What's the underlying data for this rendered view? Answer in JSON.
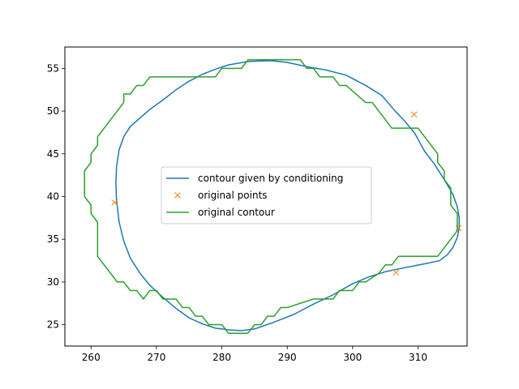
{
  "chart_data": {
    "type": "line",
    "title": "",
    "xlabel": "",
    "ylabel": "",
    "xlim": [
      256,
      317.5
    ],
    "ylim": [
      22.5,
      57.5
    ],
    "xticks": [
      260,
      270,
      280,
      290,
      300,
      310
    ],
    "yticks": [
      25,
      30,
      35,
      40,
      45,
      50,
      55
    ],
    "grid": false,
    "legend_position": "center",
    "series": [
      {
        "name": "contour given by conditioning",
        "kind": "line",
        "color": "#1f77b4",
        "points": [
          [
            284.0,
            55.8
          ],
          [
            287.5,
            55.9
          ],
          [
            290.0,
            55.7
          ],
          [
            293.0,
            55.2
          ],
          [
            296.0,
            54.8
          ],
          [
            299.0,
            54.2
          ],
          [
            302.0,
            53.0
          ],
          [
            304.5,
            51.8
          ],
          [
            306.5,
            50.0
          ],
          [
            308.0,
            48.8
          ],
          [
            309.5,
            47.4
          ],
          [
            311.0,
            45.3
          ],
          [
            312.5,
            43.8
          ],
          [
            314.0,
            42.0
          ],
          [
            315.3,
            40.3
          ],
          [
            316.0,
            38.8
          ],
          [
            316.3,
            37.5
          ],
          [
            316.3,
            36.3
          ],
          [
            316.0,
            35.2
          ],
          [
            315.3,
            34.0
          ],
          [
            314.5,
            33.2
          ],
          [
            313.3,
            32.5
          ],
          [
            311.5,
            32.2
          ],
          [
            309.5,
            31.9
          ],
          [
            307.5,
            31.6
          ],
          [
            305.0,
            31.2
          ],
          [
            302.5,
            30.6
          ],
          [
            300.0,
            29.8
          ],
          [
            297.0,
            28.5
          ],
          [
            294.0,
            27.4
          ],
          [
            291.0,
            26.2
          ],
          [
            288.0,
            25.3
          ],
          [
            285.0,
            24.5
          ],
          [
            283.0,
            24.3
          ],
          [
            281.0,
            24.4
          ],
          [
            279.0,
            24.6
          ],
          [
            277.0,
            25.1
          ],
          [
            275.0,
            25.8
          ],
          [
            273.0,
            26.9
          ],
          [
            271.0,
            28.2
          ],
          [
            269.0,
            29.6
          ],
          [
            267.5,
            31.0
          ],
          [
            266.0,
            32.8
          ],
          [
            265.0,
            34.8
          ],
          [
            264.3,
            37.0
          ],
          [
            263.9,
            39.5
          ],
          [
            263.8,
            41.5
          ],
          [
            263.9,
            43.5
          ],
          [
            264.3,
            45.5
          ],
          [
            265.0,
            47.0
          ],
          [
            266.0,
            48.2
          ],
          [
            267.5,
            49.2
          ],
          [
            269.0,
            50.2
          ],
          [
            271.0,
            51.3
          ],
          [
            273.0,
            52.5
          ],
          [
            275.0,
            53.5
          ],
          [
            277.0,
            54.3
          ],
          [
            279.0,
            54.9
          ],
          [
            281.0,
            55.4
          ],
          [
            284.0,
            55.8
          ]
        ]
      },
      {
        "name": "original points",
        "kind": "scatter",
        "marker": "x",
        "color": "#ff7f0e",
        "points": [
          [
            263.6,
            39.3
          ],
          [
            309.4,
            49.6
          ],
          [
            316.2,
            36.3
          ],
          [
            306.6,
            31.1
          ]
        ]
      },
      {
        "name": "original contour",
        "kind": "line",
        "color": "#2ca02c",
        "points": [
          [
            265,
            51
          ],
          [
            265,
            52
          ],
          [
            266,
            52
          ],
          [
            267,
            53
          ],
          [
            268,
            53
          ],
          [
            269,
            54
          ],
          [
            279,
            54
          ],
          [
            280,
            55
          ],
          [
            283,
            55
          ],
          [
            284,
            56
          ],
          [
            292,
            56
          ],
          [
            293,
            55
          ],
          [
            294,
            55
          ],
          [
            295,
            54
          ],
          [
            297,
            54
          ],
          [
            298,
            53
          ],
          [
            299,
            53
          ],
          [
            302,
            51
          ],
          [
            303,
            51
          ],
          [
            306,
            48
          ],
          [
            310,
            48
          ],
          [
            313,
            45
          ],
          [
            313,
            44
          ],
          [
            314,
            43
          ],
          [
            314,
            42
          ],
          [
            315,
            41
          ],
          [
            315,
            39
          ],
          [
            316,
            38
          ],
          [
            316,
            36
          ],
          [
            313,
            33
          ],
          [
            307,
            33
          ],
          [
            306,
            32
          ],
          [
            305,
            32
          ],
          [
            304,
            31
          ],
          [
            302,
            30
          ],
          [
            301,
            30
          ],
          [
            300,
            29
          ],
          [
            298,
            29
          ],
          [
            297,
            28
          ],
          [
            295,
            28
          ],
          [
            294,
            28
          ],
          [
            290,
            27
          ],
          [
            289,
            27
          ],
          [
            288,
            26
          ],
          [
            287,
            26
          ],
          [
            286,
            25
          ],
          [
            285,
            25
          ],
          [
            284,
            24
          ],
          [
            281,
            24
          ],
          [
            280,
            25
          ],
          [
            278,
            25
          ],
          [
            277,
            26
          ],
          [
            276,
            26
          ],
          [
            275,
            27
          ],
          [
            274,
            27
          ],
          [
            273,
            28
          ],
          [
            271,
            28
          ],
          [
            270,
            29
          ],
          [
            269,
            29
          ],
          [
            268,
            28
          ],
          [
            267,
            29
          ],
          [
            266,
            29
          ],
          [
            265,
            30
          ],
          [
            264,
            30
          ],
          [
            261,
            33
          ],
          [
            261,
            37
          ],
          [
            260,
            38
          ],
          [
            260,
            39
          ],
          [
            259,
            40
          ],
          [
            259,
            43
          ],
          [
            260,
            44
          ],
          [
            260,
            45
          ],
          [
            261,
            46
          ],
          [
            261,
            47
          ],
          [
            264,
            50
          ],
          [
            265,
            51
          ]
        ]
      }
    ]
  }
}
